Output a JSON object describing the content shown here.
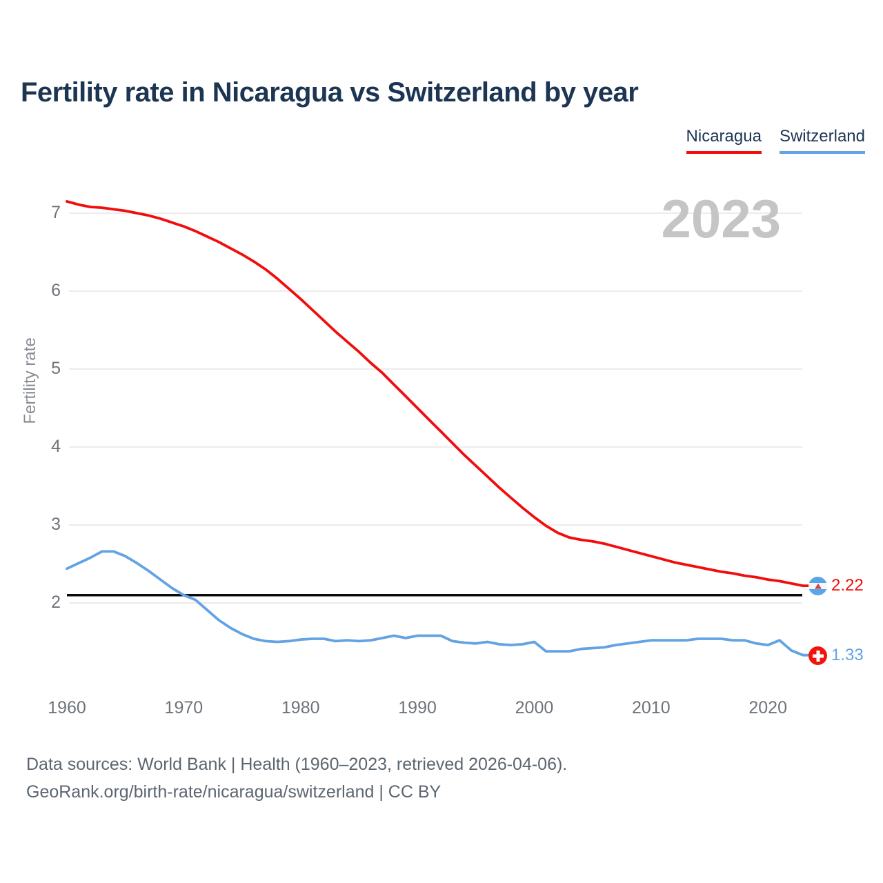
{
  "header": {
    "title": "Fertility rate in Nicaragua vs Switzerland by year"
  },
  "legend": [
    {
      "label": "Nicaragua",
      "color": "#f20d0d"
    },
    {
      "label": "Switzerland",
      "color": "#63a3e3"
    }
  ],
  "chart_data": {
    "type": "line",
    "title": "Fertility rate in Nicaragua vs Switzerland by year",
    "ylabel": "Fertility rate",
    "watermark": "2023",
    "grid": "horizontal",
    "legend_position": "top-right",
    "x_ticks": [
      1960,
      1970,
      1980,
      1990,
      2000,
      2010,
      2020
    ],
    "y_ticks": [
      7,
      6,
      5,
      4,
      3,
      2
    ],
    "x_range": [
      1960,
      2023
    ],
    "reference_line": {
      "value": 2.1
    },
    "x": [
      1960,
      1961,
      1962,
      1963,
      1964,
      1965,
      1966,
      1967,
      1968,
      1969,
      1970,
      1971,
      1972,
      1973,
      1974,
      1975,
      1976,
      1977,
      1978,
      1979,
      1980,
      1981,
      1982,
      1983,
      1984,
      1985,
      1986,
      1987,
      1988,
      1989,
      1990,
      1991,
      1992,
      1993,
      1994,
      1995,
      1996,
      1997,
      1998,
      1999,
      2000,
      2001,
      2002,
      2003,
      2004,
      2005,
      2006,
      2007,
      2008,
      2009,
      2010,
      2011,
      2012,
      2013,
      2014,
      2015,
      2016,
      2017,
      2018,
      2019,
      2020,
      2021,
      2022,
      2023
    ],
    "series": [
      {
        "name": "Nicaragua",
        "color": "#f20d0d",
        "end_label": "2.22",
        "values": [
          7.15,
          7.11,
          7.08,
          7.07,
          7.05,
          7.03,
          7.0,
          6.97,
          6.93,
          6.88,
          6.83,
          6.77,
          6.7,
          6.63,
          6.55,
          6.47,
          6.38,
          6.28,
          6.16,
          6.03,
          5.9,
          5.76,
          5.62,
          5.48,
          5.35,
          5.22,
          5.08,
          4.95,
          4.8,
          4.65,
          4.5,
          4.35,
          4.2,
          4.05,
          3.9,
          3.76,
          3.62,
          3.48,
          3.35,
          3.22,
          3.1,
          2.99,
          2.9,
          2.84,
          2.81,
          2.79,
          2.76,
          2.72,
          2.68,
          2.64,
          2.6,
          2.56,
          2.52,
          2.49,
          2.46,
          2.43,
          2.4,
          2.38,
          2.35,
          2.33,
          2.3,
          2.28,
          2.25,
          2.22
        ]
      },
      {
        "name": "Switzerland",
        "color": "#63a3e3",
        "end_label": "1.33",
        "values": [
          2.44,
          2.51,
          2.58,
          2.66,
          2.66,
          2.6,
          2.51,
          2.41,
          2.3,
          2.19,
          2.1,
          2.04,
          1.91,
          1.78,
          1.68,
          1.6,
          1.54,
          1.51,
          1.5,
          1.51,
          1.53,
          1.54,
          1.54,
          1.51,
          1.52,
          1.51,
          1.52,
          1.55,
          1.58,
          1.55,
          1.58,
          1.58,
          1.58,
          1.51,
          1.49,
          1.48,
          1.5,
          1.47,
          1.46,
          1.47,
          1.5,
          1.38,
          1.38,
          1.38,
          1.41,
          1.42,
          1.43,
          1.46,
          1.48,
          1.5,
          1.52,
          1.52,
          1.52,
          1.52,
          1.54,
          1.54,
          1.54,
          1.52,
          1.52,
          1.48,
          1.46,
          1.52,
          1.39,
          1.33
        ]
      }
    ]
  },
  "footer": {
    "line1": "Data sources: World Bank | Health (1960–2023, retrieved 2026-04-06).",
    "line2": "GeoRank.org/birth-rate/nicaragua/switzerland | CC BY"
  },
  "colors": {
    "nicaragua_red": "#f20d0d",
    "switzerland_blue": "#63a3e3",
    "title_navy": "#1c3553",
    "tick_gray": "#6e737b",
    "watermark_gray": "#c5c5c5",
    "gridline_gray": "#ececec",
    "reference_black": "#0a0a0a"
  }
}
